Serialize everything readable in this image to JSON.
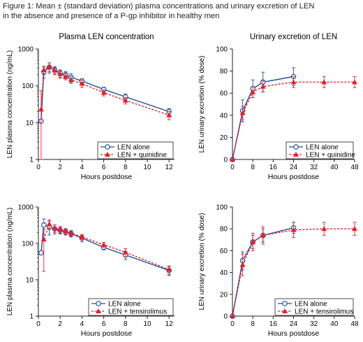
{
  "caption": {
    "line1": "Figure 1: Mean ± (standard deviation) plasma concentrations and urinary excretion of LEN",
    "line2": "in the absence and presence of a P-gp inhibitor in healthy men"
  },
  "colors": {
    "alone": "#1f4e9c",
    "combo": "#e0202a",
    "axis": "#231f20",
    "marker_fill": "#ffffff"
  },
  "chart_data": [
    {
      "id": "plasma-quinidine",
      "type": "line",
      "title": "Plasma LEN concentration",
      "xlabel": "Hours postdose",
      "ylabel": "LEN plasma concentration (ng/mL)",
      "xlim": [
        0,
        12.5
      ],
      "xticks": [
        0,
        2,
        4,
        6,
        8,
        10,
        12
      ],
      "ylim": [
        1,
        1000
      ],
      "yscale": "log",
      "yticks": [
        1,
        10,
        100,
        1000
      ],
      "legend_position": "bottom-right",
      "series": [
        {
          "name": "LEN alone",
          "style": "alone",
          "x": [
            0.25,
            0.5,
            1,
            1.5,
            2,
            2.5,
            3,
            4,
            6,
            8,
            12
          ],
          "y": [
            11,
            240,
            320,
            270,
            220,
            200,
            170,
            135,
            80,
            50,
            20
          ],
          "err": [
            0,
            80,
            100,
            60,
            50,
            45,
            45,
            20,
            12,
            10,
            4
          ]
        },
        {
          "name": "LEN  + quinidine",
          "style": "combo",
          "x": [
            0.25,
            0.5,
            1,
            1.5,
            2,
            2.5,
            3,
            4,
            6,
            8,
            12
          ],
          "y": [
            23,
            270,
            330,
            260,
            210,
            180,
            145,
            115,
            65,
            40,
            16
          ],
          "err": [
            50,
            70,
            90,
            60,
            50,
            35,
            30,
            25,
            12,
            8,
            4
          ]
        }
      ]
    },
    {
      "id": "urine-quinidine",
      "type": "line",
      "title": "Urinary excretion of LEN",
      "xlabel": "Hours postdose",
      "ylabel": "LEN urinary excretion (% dose)",
      "xlim": [
        0,
        48
      ],
      "xticks": [
        0,
        8,
        16,
        24,
        32,
        40,
        48
      ],
      "ylim": [
        0,
        100
      ],
      "yscale": "linear",
      "yticks": [
        0,
        20,
        40,
        60,
        80,
        100
      ],
      "legend_position": "bottom-right",
      "series": [
        {
          "name": "LEN alone",
          "style": "alone",
          "x": [
            0,
            4,
            8,
            12,
            24
          ],
          "y": [
            0,
            44,
            64,
            70,
            75
          ],
          "err": [
            0,
            10,
            8,
            9,
            8
          ]
        },
        {
          "name": "LEN  + quinidine",
          "style": "combo",
          "x": [
            0,
            4,
            8,
            12,
            24,
            36,
            48
          ],
          "y": [
            0,
            42,
            61,
            66,
            70,
            70,
            70
          ],
          "err": [
            0,
            6,
            5,
            5,
            5,
            5,
            5
          ]
        }
      ]
    },
    {
      "id": "plasma-temsirolimus",
      "type": "line",
      "title": "",
      "xlabel": "Hours postdose",
      "ylabel": "LEN plasma concentration (ng/mL)",
      "xlim": [
        0,
        12.5
      ],
      "xticks": [
        0,
        2,
        4,
        6,
        8,
        10,
        12
      ],
      "ylim": [
        1,
        1000
      ],
      "yscale": "log",
      "yticks": [
        1,
        10,
        100,
        1000
      ],
      "legend_position": "bottom-right",
      "series": [
        {
          "name": "LEN alone",
          "style": "alone",
          "x": [
            0.25,
            0.5,
            1,
            1.5,
            2,
            2.5,
            3,
            4,
            6,
            8,
            12
          ],
          "y": [
            55,
            320,
            290,
            250,
            230,
            210,
            185,
            140,
            78,
            48,
            18
          ],
          "err": [
            0,
            150,
            120,
            70,
            50,
            40,
            35,
            30,
            12,
            12,
            5
          ]
        },
        {
          "name": "LEN  + tensirolimus",
          "style": "combo",
          "x": [
            0.5,
            1,
            1.5,
            2,
            2.5,
            3,
            4,
            6,
            8,
            12
          ],
          "y": [
            130,
            340,
            260,
            240,
            215,
            190,
            150,
            92,
            57,
            19
          ],
          "err": [
            113,
            100,
            60,
            50,
            40,
            35,
            25,
            15,
            15,
            5
          ]
        }
      ]
    },
    {
      "id": "urine-temsirolimus",
      "type": "line",
      "title": "",
      "xlabel": "Hours postdose",
      "ylabel": "LEN urinary excretion (% dose)",
      "xlim": [
        0,
        48
      ],
      "xticks": [
        0,
        8,
        16,
        24,
        32,
        40,
        48
      ],
      "ylim": [
        0,
        100
      ],
      "yscale": "linear",
      "yticks": [
        0,
        20,
        40,
        60,
        80,
        100
      ],
      "legend_position": "bottom-right",
      "series": [
        {
          "name": "LEN alone",
          "style": "alone",
          "x": [
            0,
            4,
            8,
            12,
            24
          ],
          "y": [
            0,
            51,
            68,
            74,
            81
          ],
          "err": [
            0,
            8,
            6,
            6,
            5
          ]
        },
        {
          "name": "LEN  + tensirolimus",
          "style": "combo",
          "x": [
            0,
            4,
            8,
            12,
            24,
            36,
            48
          ],
          "y": [
            0,
            47,
            68,
            74,
            79,
            80,
            80
          ],
          "err": [
            0,
            10,
            8,
            8,
            7,
            6,
            6
          ]
        }
      ]
    }
  ]
}
